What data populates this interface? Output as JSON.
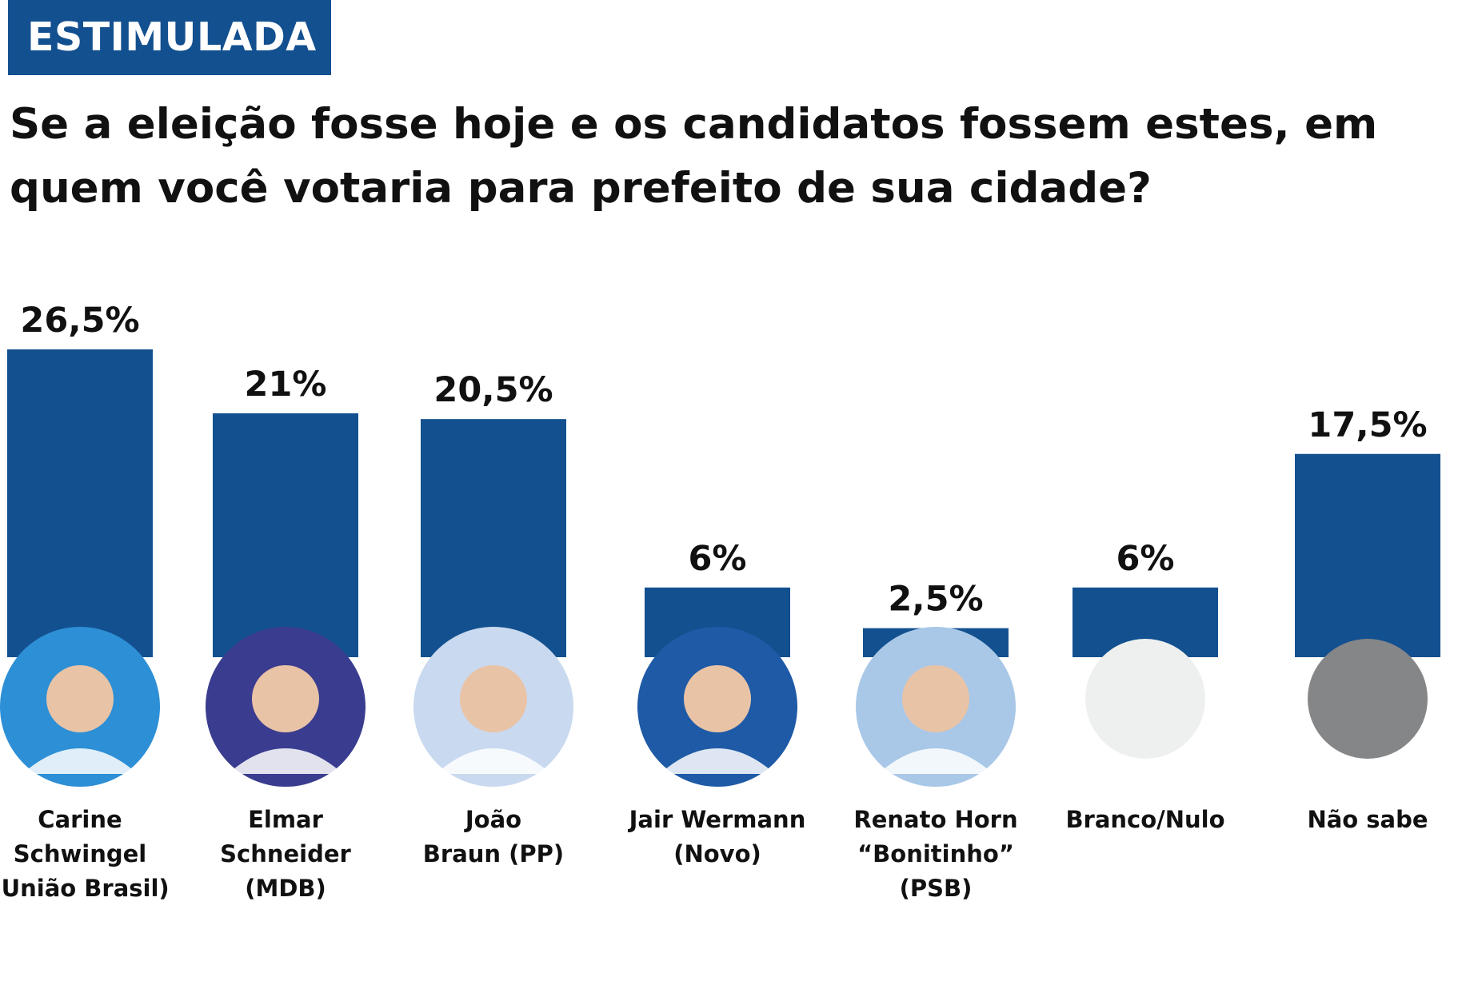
{
  "header": {
    "badge": "ESTIMULADA",
    "question": "Se a eleição fosse hoje e os candidatos fossem estes, em quem você votaria para prefeito de sua cidade?"
  },
  "colors": {
    "bar": "#13508f",
    "badge_bg": "#13508f",
    "branco_circle": "#eef0ef",
    "nao_sabe_circle": "#858688"
  },
  "chart_data": {
    "type": "bar",
    "title": "Se a eleição fosse hoje e os candidatos fossem estes, em quem você votaria para prefeito de sua cidade?",
    "unit": "%",
    "categories": [
      "Carine Schwingel (União Brasil)",
      "Elmar Schneider (MDB)",
      "João Braun (PP)",
      "Jair Wermann (Novo)",
      "Renato Horn “Bonitinho” (PSB)",
      "Branco/Nulo",
      "Não sabe"
    ],
    "values": [
      26.5,
      21,
      20.5,
      6,
      2.5,
      6,
      17.5
    ],
    "value_labels": [
      "26,5%",
      "21%",
      "20,5%",
      "6%",
      "2,5%",
      "6%",
      "17,5%"
    ],
    "name_lines": [
      [
        "Carine",
        "Schwingel",
        "(União Brasil)"
      ],
      [
        "Elmar",
        "Schneider",
        "(MDB)"
      ],
      [
        "João",
        "Braun (PP)"
      ],
      [
        "Jair Wermann",
        "(Novo)"
      ],
      [
        "Renato Horn",
        "“Bonitinho”",
        "(PSB)"
      ],
      [
        "Branco/Nulo"
      ],
      [
        "Não sabe"
      ]
    ],
    "ylim": [
      0,
      26.5
    ],
    "grid": false,
    "legend": "none"
  }
}
